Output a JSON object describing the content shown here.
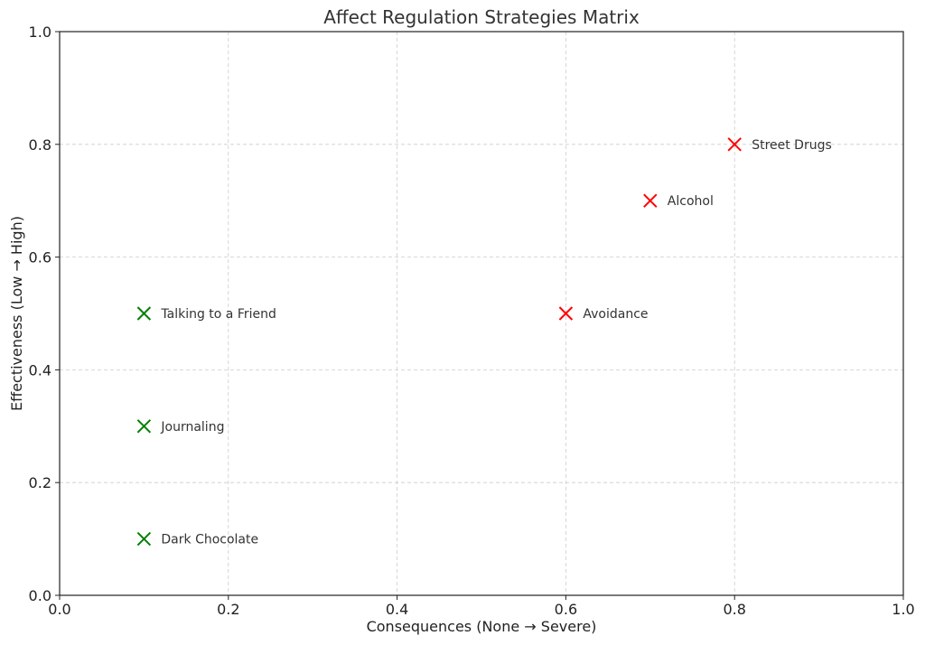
{
  "chart_data": {
    "type": "scatter",
    "title": "Affect Regulation Strategies Matrix",
    "xlabel": "Consequences (None → Severe)",
    "ylabel": "Effectiveness (Low → High)",
    "xlim": [
      0,
      1
    ],
    "ylim": [
      0,
      1
    ],
    "xticks": [
      "0.0",
      "0.2",
      "0.4",
      "0.6",
      "0.8",
      "1.0"
    ],
    "yticks": [
      "0.0",
      "0.2",
      "0.4",
      "0.6",
      "0.8",
      "1.0"
    ],
    "grid": true,
    "marker": "x",
    "points": [
      {
        "label": "Talking to a Friend",
        "x": 0.1,
        "y": 0.5,
        "color": "#008000"
      },
      {
        "label": "Journaling",
        "x": 0.1,
        "y": 0.3,
        "color": "#008000"
      },
      {
        "label": "Dark Chocolate",
        "x": 0.1,
        "y": 0.1,
        "color": "#008000"
      },
      {
        "label": "Avoidance",
        "x": 0.6,
        "y": 0.5,
        "color": "#ff0000"
      },
      {
        "label": "Alcohol",
        "x": 0.7,
        "y": 0.7,
        "color": "#ff0000"
      },
      {
        "label": "Street Drugs",
        "x": 0.8,
        "y": 0.8,
        "color": "#ff0000"
      }
    ]
  }
}
